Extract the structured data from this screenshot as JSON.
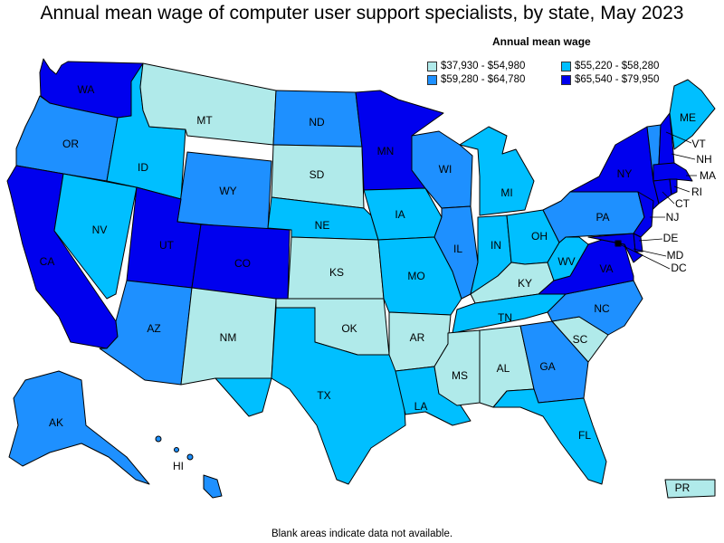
{
  "title": "Annual mean wage of computer user support specialists, by state, May 2023",
  "legend": {
    "title": "Annual mean wage",
    "items": [
      {
        "label": "$37,930 - $54,980",
        "color": "#b0eaea"
      },
      {
        "label": "$55,220 - $58,280",
        "color": "#00bfff"
      },
      {
        "label": "$59,280 - $64,780",
        "color": "#1e90ff"
      },
      {
        "label": "$65,540 - $79,950",
        "color": "#0000ee"
      }
    ]
  },
  "footnote": "Blank areas indicate data not available.",
  "states": {
    "WA": {
      "label": "WA",
      "tier": 3
    },
    "OR": {
      "label": "OR",
      "tier": 2
    },
    "CA": {
      "label": "CA",
      "tier": 3
    },
    "NV": {
      "label": "NV",
      "tier": 1
    },
    "ID": {
      "label": "ID",
      "tier": 1
    },
    "MT": {
      "label": "MT",
      "tier": 0
    },
    "WY": {
      "label": "WY",
      "tier": 2
    },
    "UT": {
      "label": "UT",
      "tier": 3
    },
    "AZ": {
      "label": "AZ",
      "tier": 2
    },
    "CO": {
      "label": "CO",
      "tier": 3
    },
    "NM": {
      "label": "NM",
      "tier": 0
    },
    "ND": {
      "label": "ND",
      "tier": 2
    },
    "SD": {
      "label": "SD",
      "tier": 0
    },
    "NE": {
      "label": "NE",
      "tier": 1
    },
    "KS": {
      "label": "KS",
      "tier": 0
    },
    "OK": {
      "label": "OK",
      "tier": 0
    },
    "TX": {
      "label": "TX",
      "tier": 1
    },
    "MN": {
      "label": "MN",
      "tier": 3
    },
    "IA": {
      "label": "IA",
      "tier": 1
    },
    "MO": {
      "label": "MO",
      "tier": 1
    },
    "AR": {
      "label": "AR",
      "tier": 0
    },
    "LA": {
      "label": "LA",
      "tier": 1
    },
    "WI": {
      "label": "WI",
      "tier": 2
    },
    "IL": {
      "label": "IL",
      "tier": 2
    },
    "MI": {
      "label": "MI",
      "tier": 1
    },
    "IN": {
      "label": "IN",
      "tier": 1
    },
    "OH": {
      "label": "OH",
      "tier": 1
    },
    "KY": {
      "label": "KY",
      "tier": 0
    },
    "TN": {
      "label": "TN",
      "tier": 1
    },
    "MS": {
      "label": "MS",
      "tier": 0
    },
    "AL": {
      "label": "AL",
      "tier": 0
    },
    "GA": {
      "label": "GA",
      "tier": 2
    },
    "FL": {
      "label": "FL",
      "tier": 1
    },
    "SC": {
      "label": "SC",
      "tier": 0
    },
    "NC": {
      "label": "NC",
      "tier": 2
    },
    "VA": {
      "label": "VA",
      "tier": 3
    },
    "WV": {
      "label": "WV",
      "tier": 1
    },
    "PA": {
      "label": "PA",
      "tier": 2
    },
    "NY": {
      "label": "NY",
      "tier": 3
    },
    "NJ": {
      "label": "NJ",
      "tier": 3
    },
    "DE": {
      "label": "DE",
      "tier": 3
    },
    "MD": {
      "label": "MD",
      "tier": 3
    },
    "DC": {
      "label": "DC",
      "tier": 3
    },
    "CT": {
      "label": "CT",
      "tier": 3
    },
    "RI": {
      "label": "RI",
      "tier": 3
    },
    "MA": {
      "label": "MA",
      "tier": 3
    },
    "VT": {
      "label": "VT",
      "tier": 2
    },
    "NH": {
      "label": "NH",
      "tier": 3
    },
    "ME": {
      "label": "ME",
      "tier": 1
    },
    "AK": {
      "label": "AK",
      "tier": 2
    },
    "HI": {
      "label": "HI",
      "tier": 2
    },
    "PR": {
      "label": "PR",
      "tier": 0
    }
  }
}
